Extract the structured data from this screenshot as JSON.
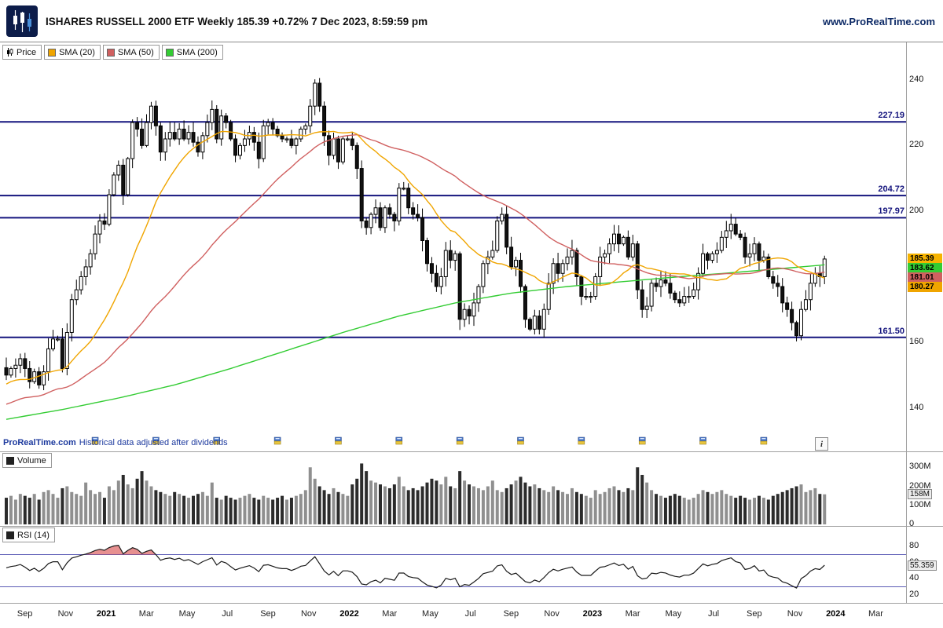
{
  "header": {
    "title": "ISHARES RUSSELL 2000 ETF Weekly 185.39 +0.72% 7 Dec 2023, 8:59:59 pm",
    "website": "www.ProRealTime.com",
    "logo_bg": "#0c1c49"
  },
  "price_panel": {
    "legend": [
      {
        "label": "Price",
        "color": "#000000"
      },
      {
        "label": "SMA (20)",
        "color": "#f0a500"
      },
      {
        "label": "SMA (50)",
        "color": "#d06060"
      },
      {
        "label": "SMA (200)",
        "color": "#33cc33"
      }
    ],
    "y_ticks": [
      240,
      220,
      200,
      160,
      140
    ],
    "level_color": "#15157e",
    "price_labels": [
      {
        "value": "185.39",
        "bg": "#f6b300",
        "fg": "#000000"
      },
      {
        "value": "183.62",
        "bg": "#33cc33",
        "fg": "#000000"
      },
      {
        "value": "181.01",
        "bg": "#d06060",
        "fg": "#000000"
      },
      {
        "value": "180.27",
        "bg": "#f0a500",
        "fg": "#000000"
      }
    ],
    "watermark_brand": "ProRealTime.com",
    "watermark_note": "Historical data adjusted after dividends",
    "info_button": "i"
  },
  "volume_panel": {
    "legend": "Volume",
    "y_ticks": [
      "300M",
      "200M",
      "100M",
      "0"
    ],
    "current": "158M"
  },
  "rsi_panel": {
    "legend": "RSI (14)",
    "y_ticks": [
      80,
      60,
      40,
      20
    ],
    "current": "55.359"
  },
  "chart_data": {
    "type": "candlestick",
    "symbol": "ISHARES RUSSELL 2000 ETF",
    "timeframe": "Weekly",
    "last": 185.39,
    "change_pct": "+0.72%",
    "timestamp": "7 Dec 2023, 8:59:59 pm",
    "price_domain": [
      132,
      250
    ],
    "levels": [
      227.19,
      204.72,
      197.97,
      161.5
    ],
    "sma_last": {
      "sma20": 180.27,
      "sma50": 181.01,
      "sma200": 183.62
    },
    "closes": [
      150,
      152,
      153,
      155,
      152,
      148,
      151,
      147,
      151,
      158,
      161,
      161,
      152,
      163,
      173,
      176,
      180,
      183,
      187,
      193,
      197,
      196,
      205,
      211,
      214,
      205,
      216,
      227,
      225,
      220,
      227,
      232,
      226,
      218,
      222,
      224,
      222,
      225,
      222,
      224,
      221,
      218,
      223,
      227,
      231,
      222,
      229,
      227,
      222,
      217,
      220,
      222,
      224,
      221,
      216,
      226,
      227,
      225,
      223,
      222,
      222,
      220,
      222,
      225,
      226,
      232,
      239,
      232,
      223,
      217,
      222,
      215,
      222,
      222,
      220,
      213,
      197,
      195,
      199,
      201,
      195,
      201,
      199,
      197,
      207,
      207,
      201,
      199,
      198,
      191,
      184,
      181,
      177,
      180,
      188,
      185,
      187,
      167,
      170,
      168,
      172,
      177,
      184,
      186,
      188,
      197,
      199,
      189,
      183,
      185,
      177,
      167,
      164,
      168,
      164,
      170,
      178,
      184,
      181,
      184,
      186,
      188,
      180,
      174,
      174,
      174,
      180,
      186,
      187,
      190,
      193,
      190,
      192,
      186,
      190,
      176,
      170,
      171,
      178,
      177,
      179,
      178,
      175,
      173,
      172,
      174,
      174,
      176,
      181,
      187,
      185,
      187,
      188,
      192,
      194,
      196,
      193,
      192,
      186,
      187,
      190,
      185,
      186,
      180,
      178,
      177,
      172,
      170,
      166,
      162,
      170,
      173,
      178,
      181,
      180,
      185.39
    ],
    "volumes_millions": [
      140,
      150,
      130,
      160,
      150,
      140,
      160,
      130,
      170,
      180,
      160,
      140,
      190,
      200,
      170,
      160,
      150,
      220,
      180,
      160,
      170,
      140,
      200,
      180,
      230,
      260,
      210,
      190,
      240,
      280,
      230,
      200,
      180,
      170,
      160,
      150,
      170,
      160,
      150,
      140,
      150,
      160,
      170,
      150,
      220,
      140,
      130,
      150,
      140,
      130,
      140,
      150,
      160,
      140,
      130,
      150,
      140,
      130,
      140,
      150,
      130,
      140,
      150,
      160,
      180,
      300,
      240,
      200,
      180,
      160,
      190,
      170,
      160,
      150,
      210,
      240,
      320,
      280,
      230,
      220,
      210,
      200,
      190,
      210,
      250,
      200,
      180,
      190,
      180,
      200,
      220,
      240,
      230,
      210,
      250,
      200,
      190,
      280,
      230,
      210,
      200,
      190,
      180,
      200,
      230,
      180,
      170,
      190,
      210,
      230,
      250,
      220,
      200,
      210,
      190,
      180,
      170,
      200,
      180,
      170,
      160,
      190,
      170,
      160,
      150,
      140,
      180,
      160,
      170,
      190,
      200,
      180,
      170,
      190,
      180,
      300,
      260,
      220,
      180,
      160,
      150,
      140,
      150,
      160,
      150,
      140,
      130,
      140,
      160,
      180,
      170,
      160,
      170,
      180,
      160,
      150,
      140,
      150,
      140,
      130,
      140,
      150,
      140,
      130,
      150,
      160,
      170,
      180,
      190,
      200,
      210,
      170,
      180,
      190,
      160,
      158
    ],
    "volume_last": "158M",
    "rsi_period": 14,
    "rsi_last": 55.359,
    "rsi_zones": [
      30,
      70
    ],
    "sma200_keypoints": [
      [
        0,
        136.5
      ],
      [
        12,
        139.5
      ],
      [
        24,
        143
      ],
      [
        36,
        147
      ],
      [
        48,
        152
      ],
      [
        60,
        157.5
      ],
      [
        72,
        163
      ],
      [
        84,
        168
      ],
      [
        96,
        172
      ],
      [
        108,
        175
      ],
      [
        120,
        177
      ],
      [
        132,
        178.5
      ],
      [
        144,
        180
      ],
      [
        156,
        181.3
      ],
      [
        166,
        182.5
      ],
      [
        175,
        183.62
      ]
    ],
    "dividend_marker_indices": [
      19,
      32,
      45,
      58,
      71,
      84,
      97,
      110,
      123,
      136,
      149,
      162
    ],
    "x_labels": [
      {
        "t": "Sep",
        "i": 4.3,
        "b": false
      },
      {
        "t": "Nov",
        "i": 13,
        "b": false
      },
      {
        "t": "2021",
        "i": 21.7,
        "b": true
      },
      {
        "t": "Mar",
        "i": 30.3,
        "b": false
      },
      {
        "t": "May",
        "i": 39,
        "b": false
      },
      {
        "t": "Jul",
        "i": 47.6,
        "b": false
      },
      {
        "t": "Sep",
        "i": 56.3,
        "b": false
      },
      {
        "t": "Nov",
        "i": 65,
        "b": false
      },
      {
        "t": "2022",
        "i": 73.7,
        "b": true
      },
      {
        "t": "Mar",
        "i": 82.3,
        "b": false
      },
      {
        "t": "May",
        "i": 91,
        "b": false
      },
      {
        "t": "Jul",
        "i": 99.6,
        "b": false
      },
      {
        "t": "Sep",
        "i": 108.3,
        "b": false
      },
      {
        "t": "Nov",
        "i": 117,
        "b": false
      },
      {
        "t": "2023",
        "i": 125.7,
        "b": true
      },
      {
        "t": "Mar",
        "i": 134.3,
        "b": false
      },
      {
        "t": "May",
        "i": 143,
        "b": false
      },
      {
        "t": "Jul",
        "i": 151.6,
        "b": false
      },
      {
        "t": "Sep",
        "i": 160.3,
        "b": false
      },
      {
        "t": "Nov",
        "i": 169,
        "b": false
      },
      {
        "t": "2024",
        "i": 177.7,
        "b": true
      },
      {
        "t": "Mar",
        "i": 186.3,
        "b": false
      }
    ]
  }
}
